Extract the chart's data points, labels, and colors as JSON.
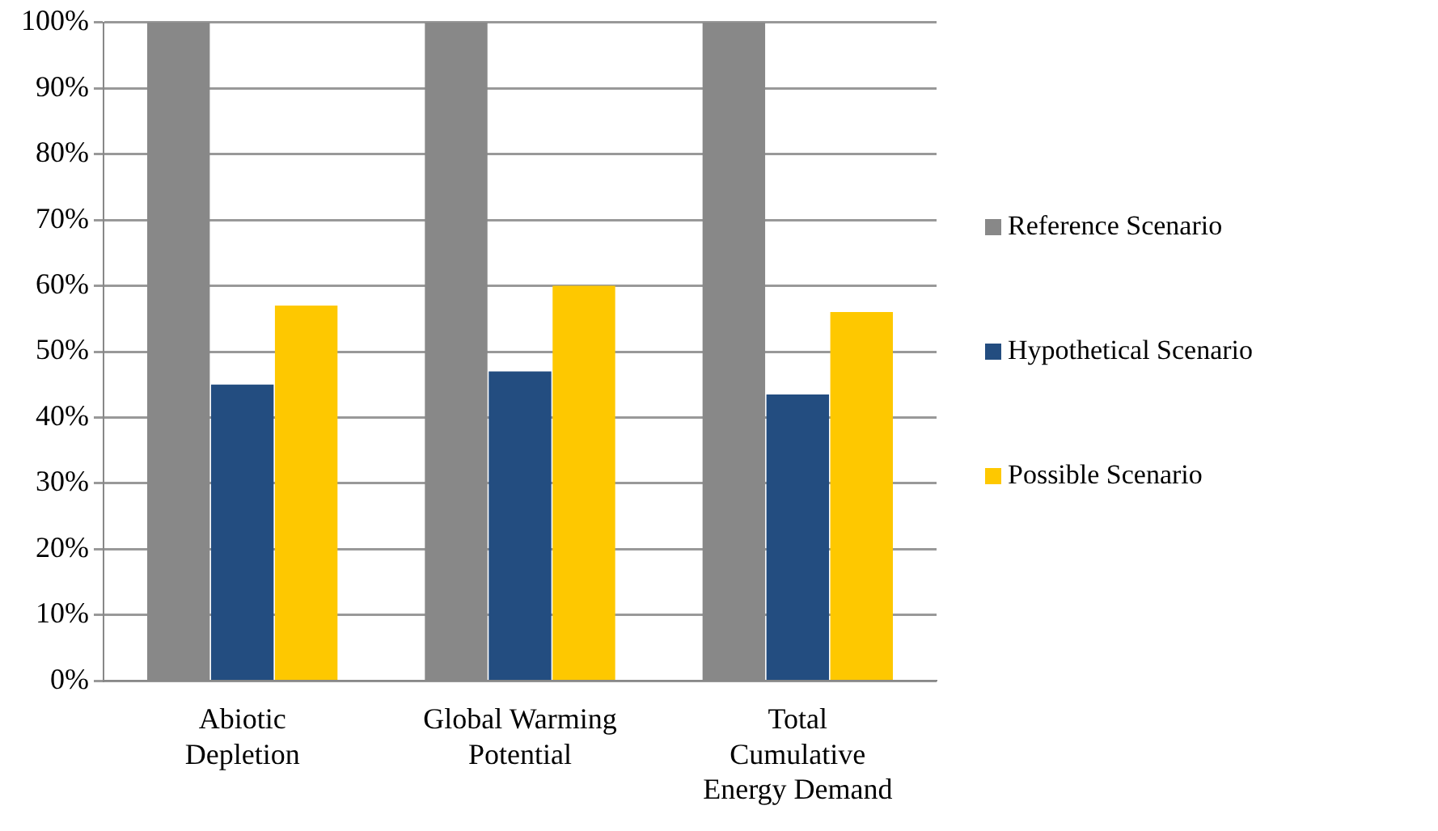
{
  "chart_data": {
    "type": "bar",
    "categories": [
      "Abiotic Depletion",
      "Global Warming Potential",
      "Total Cumulative Energy Demand"
    ],
    "series": [
      {
        "name": "Reference Scenario",
        "color": "#888888",
        "values": [
          100,
          100,
          100
        ]
      },
      {
        "name": "Hypothetical Scenario",
        "color": "#234d80",
        "values": [
          45,
          47,
          43.5
        ]
      },
      {
        "name": "Possible Scenario",
        "color": "#fec800",
        "values": [
          57,
          60,
          56
        ]
      }
    ],
    "ylim": [
      0,
      100
    ],
    "yticks": [
      {
        "value": 0,
        "label": "0%"
      },
      {
        "value": 10,
        "label": "10%"
      },
      {
        "value": 20,
        "label": "20%"
      },
      {
        "value": 30,
        "label": "30%"
      },
      {
        "value": 40,
        "label": "40%"
      },
      {
        "value": 50,
        "label": "50%"
      },
      {
        "value": 60,
        "label": "60%"
      },
      {
        "value": 70,
        "label": "70%"
      },
      {
        "value": 80,
        "label": "80%"
      },
      {
        "value": 90,
        "label": "90%"
      },
      {
        "value": 100,
        "label": "100%"
      }
    ],
    "grid": "y",
    "legend": "right"
  }
}
